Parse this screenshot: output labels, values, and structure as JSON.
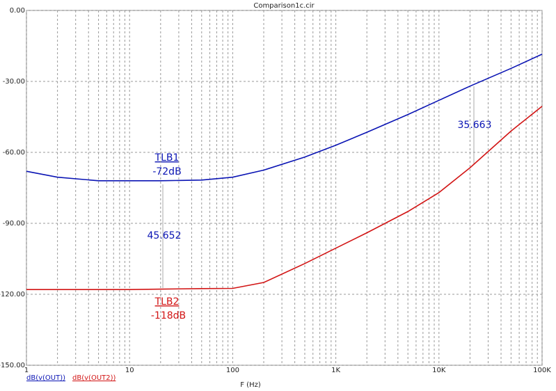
{
  "chart_data": {
    "type": "line",
    "title": "Comparison1c.cir",
    "x_label": "F (Hz)",
    "x": [
      1,
      2,
      5,
      10,
      20,
      50,
      100,
      200,
      500,
      1000,
      2000,
      5000,
      10000,
      20000,
      50000,
      100000
    ],
    "series": [
      {
        "name": "dB(v(OUT))",
        "color": "#0a14b4",
        "values": [
          -68,
          -70.5,
          -72,
          -72,
          -72,
          -71.7,
          -70.5,
          -67.5,
          -62,
          -57,
          -51.5,
          -44,
          -38,
          -32,
          -24.5,
          -18.5
        ]
      },
      {
        "name": "dB(v(OUT2))",
        "color": "#d21414",
        "values": [
          -118,
          -118,
          -118,
          -118,
          -117.8,
          -117.6,
          -117.5,
          -115,
          -107,
          -100.5,
          -94,
          -85,
          -77,
          -66.5,
          -51,
          -40.5
        ]
      }
    ],
    "xscale": "log",
    "xlim": [
      1,
      100000
    ],
    "xticks": [
      1,
      10,
      100,
      {
        "value": 1000,
        "label": "1K"
      },
      {
        "value": 10000,
        "label": "10K"
      },
      {
        "value": 100000,
        "label": "100K"
      }
    ],
    "ylim": [
      -150,
      0
    ],
    "yticks": [
      {
        "value": 0,
        "label": "0.00"
      },
      {
        "value": -30,
        "label": "-30.00"
      },
      {
        "value": -60,
        "label": "-60.00"
      },
      {
        "value": -90,
        "label": "-90.00"
      },
      {
        "value": -120,
        "label": "-120.00"
      },
      {
        "value": -150,
        "label": "-150.00"
      }
    ],
    "grid": true,
    "annotations": [
      "TLB1",
      "-72dB",
      "45.652",
      "TLB2",
      "-118dB",
      "35.663"
    ]
  }
}
